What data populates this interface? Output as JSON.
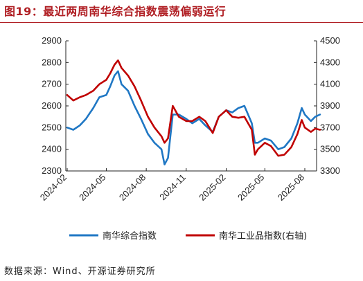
{
  "header": {
    "title": "图19：最近两周南华综合指数震荡偏弱运行"
  },
  "footer": {
    "source": "数据来源：Wind、开源证券研究所"
  },
  "colors": {
    "title": "#b01f24",
    "series_blue": "#1f77c4",
    "series_red": "#c00000"
  },
  "chart_data": {
    "type": "line",
    "grid": false,
    "legend_position": "bottom",
    "y_left": {
      "min": 2300,
      "max": 2900,
      "ticks": [
        2300,
        2400,
        2500,
        2600,
        2700,
        2800,
        2900
      ]
    },
    "y_right": {
      "min": 3300,
      "max": 4500,
      "ticks": [
        3300,
        3500,
        3700,
        3900,
        4100,
        4300,
        4500
      ]
    },
    "x_tick_labels": [
      "2024-02",
      "2024-05",
      "2024-08",
      "2024-11",
      "2025-02",
      "2025-05",
      "2025-08"
    ],
    "x_start": "2024-02",
    "series": [
      {
        "name": "南华综合指数",
        "axis": "left",
        "color": "#1f77c4",
        "points": [
          [
            "2024-02-01",
            2500
          ],
          [
            "2024-02-15",
            2490
          ],
          [
            "2024-03-01",
            2510
          ],
          [
            "2024-03-15",
            2540
          ],
          [
            "2024-04-01",
            2590
          ],
          [
            "2024-04-15",
            2640
          ],
          [
            "2024-05-01",
            2650
          ],
          [
            "2024-05-10",
            2690
          ],
          [
            "2024-05-20",
            2740
          ],
          [
            "2024-05-28",
            2760
          ],
          [
            "2024-06-05",
            2700
          ],
          [
            "2024-06-20",
            2670
          ],
          [
            "2024-07-05",
            2600
          ],
          [
            "2024-07-20",
            2540
          ],
          [
            "2024-08-05",
            2470
          ],
          [
            "2024-08-20",
            2430
          ],
          [
            "2024-09-05",
            2400
          ],
          [
            "2024-09-12",
            2330
          ],
          [
            "2024-09-20",
            2360
          ],
          [
            "2024-10-01",
            2560
          ],
          [
            "2024-10-15",
            2560
          ],
          [
            "2024-11-01",
            2540
          ],
          [
            "2024-11-15",
            2520
          ],
          [
            "2024-12-01",
            2540
          ],
          [
            "2024-12-15",
            2510
          ],
          [
            "2025-01-01",
            2480
          ],
          [
            "2025-01-15",
            2550
          ],
          [
            "2025-02-01",
            2580
          ],
          [
            "2025-02-15",
            2570
          ],
          [
            "2025-03-01",
            2590
          ],
          [
            "2025-03-15",
            2600
          ],
          [
            "2025-04-01",
            2520
          ],
          [
            "2025-04-08",
            2430
          ],
          [
            "2025-04-15",
            2430
          ],
          [
            "2025-05-01",
            2450
          ],
          [
            "2025-05-15",
            2440
          ],
          [
            "2025-06-01",
            2400
          ],
          [
            "2025-06-15",
            2410
          ],
          [
            "2025-07-01",
            2450
          ],
          [
            "2025-07-15",
            2520
          ],
          [
            "2025-07-25",
            2590
          ],
          [
            "2025-08-01",
            2560
          ],
          [
            "2025-08-15",
            2530
          ],
          [
            "2025-08-25",
            2550
          ],
          [
            "2025-09-05",
            2560
          ]
        ]
      },
      {
        "name": "南华工业品指数(右轴)",
        "axis": "right",
        "color": "#c00000",
        "points": [
          [
            "2024-02-01",
            4000
          ],
          [
            "2024-02-15",
            3950
          ],
          [
            "2024-03-01",
            3980
          ],
          [
            "2024-03-15",
            4000
          ],
          [
            "2024-04-01",
            4040
          ],
          [
            "2024-04-15",
            4100
          ],
          [
            "2024-05-01",
            4140
          ],
          [
            "2024-05-10",
            4200
          ],
          [
            "2024-05-20",
            4280
          ],
          [
            "2024-05-28",
            4320
          ],
          [
            "2024-06-05",
            4250
          ],
          [
            "2024-06-20",
            4180
          ],
          [
            "2024-07-05",
            4080
          ],
          [
            "2024-07-20",
            3950
          ],
          [
            "2024-08-05",
            3800
          ],
          [
            "2024-08-20",
            3700
          ],
          [
            "2024-09-05",
            3620
          ],
          [
            "2024-09-12",
            3560
          ],
          [
            "2024-09-20",
            3600
          ],
          [
            "2024-10-01",
            3900
          ],
          [
            "2024-10-15",
            3800
          ],
          [
            "2024-11-01",
            3760
          ],
          [
            "2024-11-15",
            3760
          ],
          [
            "2024-12-01",
            3800
          ],
          [
            "2024-12-15",
            3760
          ],
          [
            "2025-01-01",
            3650
          ],
          [
            "2025-01-15",
            3800
          ],
          [
            "2025-02-01",
            3860
          ],
          [
            "2025-02-15",
            3800
          ],
          [
            "2025-03-01",
            3790
          ],
          [
            "2025-03-15",
            3800
          ],
          [
            "2025-04-01",
            3680
          ],
          [
            "2025-04-08",
            3450
          ],
          [
            "2025-04-15",
            3500
          ],
          [
            "2025-05-01",
            3560
          ],
          [
            "2025-05-15",
            3530
          ],
          [
            "2025-06-01",
            3440
          ],
          [
            "2025-06-15",
            3450
          ],
          [
            "2025-07-01",
            3520
          ],
          [
            "2025-07-15",
            3640
          ],
          [
            "2025-07-25",
            3770
          ],
          [
            "2025-08-01",
            3700
          ],
          [
            "2025-08-15",
            3660
          ],
          [
            "2025-08-25",
            3690
          ],
          [
            "2025-09-05",
            3680
          ]
        ]
      }
    ]
  }
}
